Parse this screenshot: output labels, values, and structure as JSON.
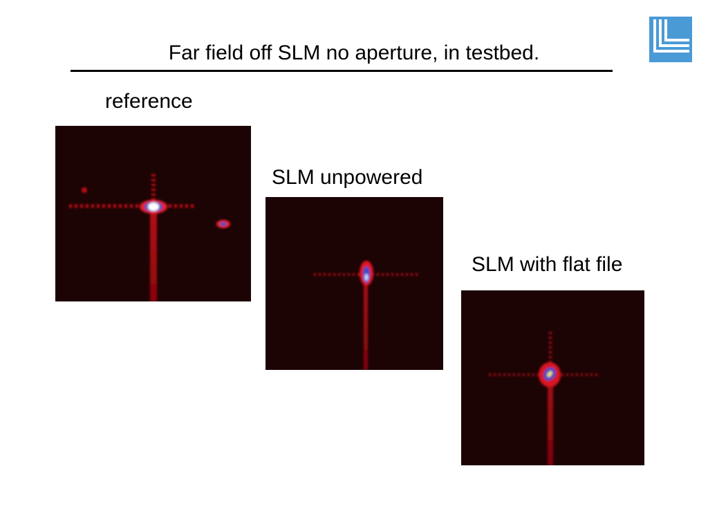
{
  "title": "Far field off SLM no aperture, in testbed.",
  "panels": [
    {
      "label": "reference"
    },
    {
      "label": "SLM unpowered"
    },
    {
      "label": "SLM with flat file"
    }
  ]
}
